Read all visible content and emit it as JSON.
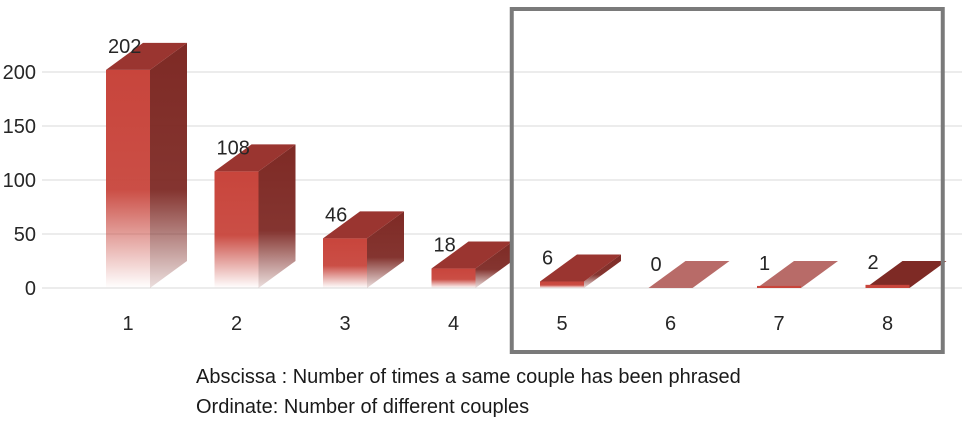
{
  "chart_data": {
    "type": "bar",
    "categories": [
      "1",
      "2",
      "3",
      "4",
      "5",
      "6",
      "7",
      "8"
    ],
    "values": [
      202,
      108,
      46,
      18,
      6,
      0,
      1,
      2
    ],
    "ylim": [
      0,
      200
    ],
    "yticks": [
      0,
      50,
      100,
      150,
      200
    ],
    "grid": true,
    "style": "3d-column",
    "highlight_box": {
      "from_category": "5",
      "to_category": "8"
    }
  },
  "colors": {
    "bar_front": "#c8453c",
    "bar_side": "#7e2a25",
    "bar_top": "#9a3530",
    "flat_bar": "#b86b68",
    "grid": "#e6e6e6",
    "box": "#7a7a7a",
    "text": "#262626"
  },
  "captions": {
    "abscissa": "Abscissa : Number of times a same couple has been phrased",
    "ordinate": "Ordinate: Number of different couples"
  }
}
